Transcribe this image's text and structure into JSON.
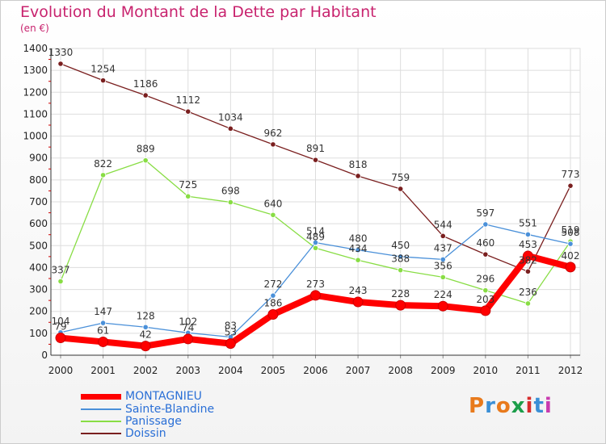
{
  "header": {
    "title": "Evolution du Montant de la Dette par Habitant",
    "unit": "(en €)"
  },
  "logo": {
    "text": "Proxiti"
  },
  "chart_data": {
    "type": "line",
    "title": "Evolution du Montant de la Dette par Habitant",
    "ylabel": "(en €)",
    "xlabel": "",
    "categories": [
      "2000",
      "2001",
      "2002",
      "2003",
      "2004",
      "2005",
      "2006",
      "2007",
      "2008",
      "2009",
      "2010",
      "2011",
      "2012"
    ],
    "ylim": [
      0,
      1400
    ],
    "yticks": [
      0,
      100,
      200,
      300,
      400,
      500,
      600,
      700,
      800,
      900,
      1000,
      1100,
      1200,
      1300,
      1400
    ],
    "grid": true,
    "legend_position": "bottom-left",
    "series": [
      {
        "name": "MONTAGNIEU",
        "color": "#ff0000",
        "values": [
          79,
          61,
          42,
          74,
          53,
          186,
          273,
          243,
          228,
          224,
          203,
          453,
          402
        ]
      },
      {
        "name": "Sainte-Blandine",
        "color": "#4a90d9",
        "values": [
          104,
          147,
          128,
          102,
          83,
          272,
          514,
          480,
          450,
          437,
          597,
          551,
          508
        ]
      },
      {
        "name": "Panissage",
        "color": "#88dd44",
        "values": [
          337,
          822,
          889,
          725,
          698,
          640,
          489,
          434,
          388,
          356,
          296,
          236,
          519
        ]
      },
      {
        "name": "Doissin",
        "color": "#7a1f1f",
        "values": [
          1330,
          1254,
          1186,
          1112,
          1034,
          962,
          891,
          818,
          759,
          544,
          460,
          382,
          773
        ]
      }
    ]
  }
}
